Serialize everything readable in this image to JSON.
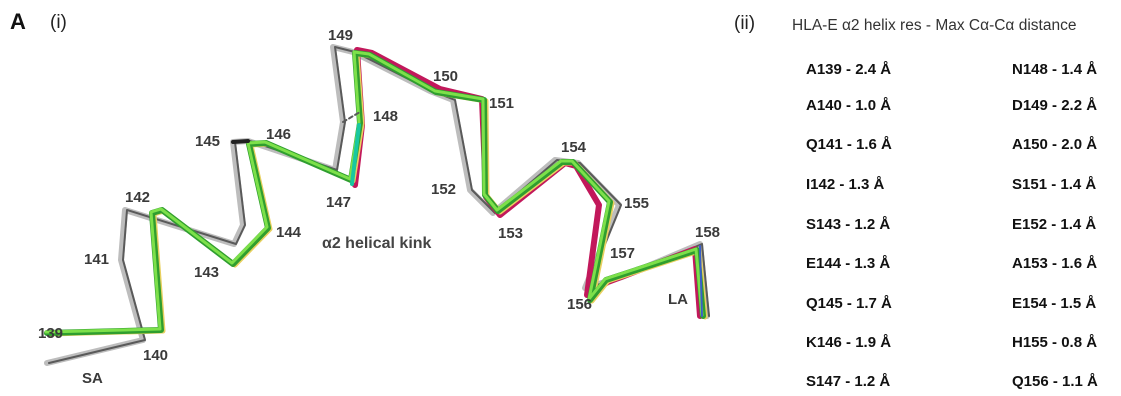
{
  "figure": {
    "panel_letter": "A",
    "left_sublabel": "(i)",
    "right_sublabel": "(ii)"
  },
  "structure": {
    "kink_label": "α2 helical kink",
    "sa_label": "SA",
    "la_label": "LA",
    "residues": [
      "139",
      "140",
      "141",
      "142",
      "143",
      "144",
      "145",
      "146",
      "147",
      "148",
      "149",
      "150",
      "151",
      "152",
      "153",
      "154",
      "155",
      "156",
      "157",
      "158"
    ],
    "colors": {
      "reference_grey": "#bdbdbd",
      "dark_grey": "#5a5a5a",
      "green": "#2f9e2f",
      "light_green": "#7de04a",
      "magenta": "#c2185b",
      "yellow": "#e8d060",
      "cyan": "#19c7a0",
      "blue": "#3a5fc8"
    }
  },
  "table": {
    "title": "HLA-E α2 helix res - Max Cα-Cα distance",
    "left": [
      "A139 - 2.4 Å",
      "A140 - 1.0 Å",
      "Q141 - 1.6 Å",
      "I142 - 1.3 Å",
      "S143 - 1.2 Å",
      "E144 - 1.3 Å",
      "Q145 - 1.7 Å",
      "K146 - 1.9 Å",
      "S147 - 1.2 Å"
    ],
    "right": [
      "N148 - 1.4 Å",
      "D149 - 2.2 Å",
      "A150 - 2.0 Å",
      "S151 - 1.4 Å",
      "E152 - 1.4 Å",
      "A153 - 1.6 Å",
      "E154 - 1.5 Å",
      "H155 - 0.8 Å",
      "Q156 - 1.1 Å"
    ]
  }
}
